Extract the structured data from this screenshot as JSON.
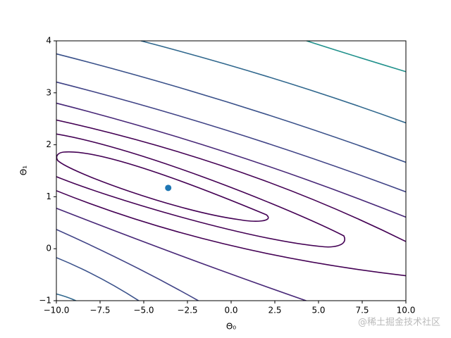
{
  "chart_data": {
    "type": "contour",
    "xlabel": "Θ₀",
    "ylabel": "Θ₁",
    "xlim": [
      -10,
      10
    ],
    "ylim": [
      -1,
      4
    ],
    "xticks": [
      {
        "value": -10,
        "label": "−10.0"
      },
      {
        "value": -7.5,
        "label": "−7.5"
      },
      {
        "value": -5,
        "label": "−5.0"
      },
      {
        "value": -2.5,
        "label": "−2.5"
      },
      {
        "value": 0,
        "label": "0.0"
      },
      {
        "value": 2.5,
        "label": "2.5"
      },
      {
        "value": 5,
        "label": "5.0"
      },
      {
        "value": 7.5,
        "label": "7.5"
      },
      {
        "value": 10,
        "label": "10.0"
      }
    ],
    "yticks": [
      {
        "value": -1,
        "label": "−1"
      },
      0,
      1,
      2,
      3,
      4
    ],
    "point": {
      "x": -3.6,
      "y": 1.17,
      "color": "#1f77b4"
    },
    "watermark": "@稀土掘金技术社区"
  }
}
